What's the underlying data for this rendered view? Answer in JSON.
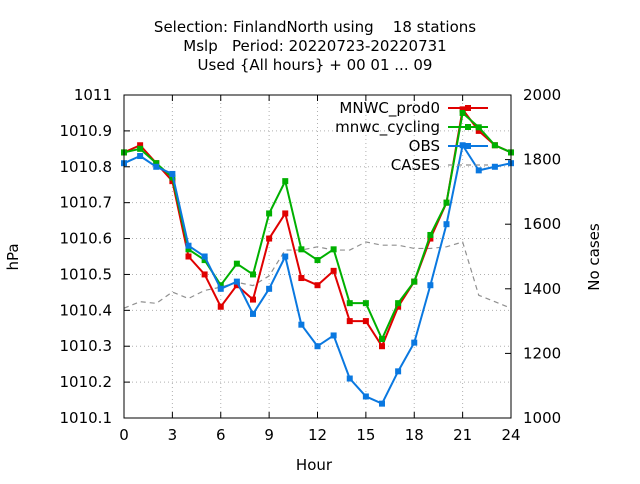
{
  "chart_data": {
    "type": "line",
    "title_lines": [
      "Selection: FinlandNorth using    18 stations",
      "Mslp   Period: 20220723-20220731",
      "Used {All hours} + 00 01 ... 09"
    ],
    "xlabel": "Hour",
    "ylabel": "hPa",
    "y2label": "No cases",
    "xlim": [
      0,
      24
    ],
    "ylim": [
      1010.1,
      1011
    ],
    "y2lim": [
      1000,
      2000
    ],
    "xticks": [
      "0",
      "3",
      "6",
      "9",
      "12",
      "15",
      "18",
      "21",
      "24"
    ],
    "yticks": [
      "1011",
      "1010.9",
      "1010.8",
      "1010.7",
      "1010.6",
      "1010.5",
      "1010.4",
      "1010.3",
      "1010.2",
      "1010.1"
    ],
    "y2ticks": [
      "2000",
      "1800",
      "1600",
      "1400",
      "1200",
      "1000"
    ],
    "grid": true,
    "legend_position": "top-right",
    "x": [
      0,
      1,
      2,
      3,
      4,
      5,
      6,
      7,
      8,
      9,
      10,
      11,
      12,
      13,
      14,
      15,
      16,
      17,
      18,
      19,
      20,
      21,
      22,
      23,
      24
    ],
    "series": [
      {
        "name": "MNWC_prod0",
        "color": "#e00000",
        "axis": "left",
        "values": [
          1010.84,
          1010.86,
          1010.81,
          1010.76,
          1010.55,
          1010.5,
          1010.41,
          1010.47,
          1010.43,
          1010.6,
          1010.67,
          1010.49,
          1010.47,
          1010.51,
          1010.37,
          1010.37,
          1010.3,
          1010.41,
          1010.48,
          1010.6,
          1010.7,
          1010.96,
          1010.9,
          1010.86,
          1010.84
        ]
      },
      {
        "name": "mnwc_cycling",
        "color": "#00b000",
        "axis": "left",
        "values": [
          1010.84,
          1010.85,
          1010.81,
          1010.77,
          1010.57,
          1010.54,
          1010.47,
          1010.53,
          1010.5,
          1010.67,
          1010.76,
          1010.57,
          1010.54,
          1010.57,
          1010.42,
          1010.42,
          1010.32,
          1010.42,
          1010.48,
          1010.61,
          1010.7,
          1010.95,
          1010.91,
          1010.86,
          1010.84
        ]
      },
      {
        "name": "OBS",
        "color": "#0a78e0",
        "axis": "left",
        "values": [
          1010.81,
          1010.83,
          1010.8,
          1010.78,
          1010.58,
          1010.55,
          1010.46,
          1010.48,
          1010.39,
          1010.46,
          1010.55,
          1010.36,
          1010.3,
          1010.33,
          1010.21,
          1010.16,
          1010.14,
          1010.23,
          1010.31,
          1010.47,
          1010.64,
          1010.86,
          1010.79,
          1010.8,
          1010.81
        ]
      },
      {
        "name": "CASES",
        "color": "#909090",
        "axis": "right",
        "dashed": true,
        "values": [
          1340,
          1360,
          1355,
          1390,
          1370,
          1395,
          1405,
          1420,
          1410,
          1440,
          1520,
          1520,
          1530,
          1520,
          1520,
          1545,
          1535,
          1535,
          1525,
          1525,
          1530,
          1545,
          1380,
          1360,
          1340
        ]
      }
    ]
  }
}
